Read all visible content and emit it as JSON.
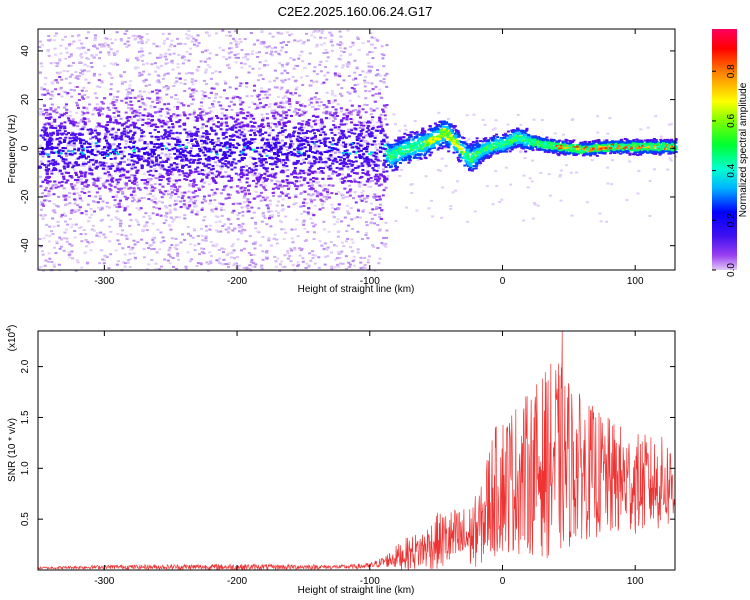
{
  "title": "C2E2.2025.160.06.24.G17",
  "chart_data": [
    {
      "type": "heatmap",
      "xlabel": "Height of straight line (km)",
      "ylabel": "Frequency (Hz)",
      "xlim": [
        -350,
        130
      ],
      "ylim": [
        -50,
        49
      ],
      "x_ticks": [
        -300,
        -200,
        -100,
        0,
        100
      ],
      "y_ticks": [
        -40,
        -20,
        0,
        20,
        40
      ],
      "colorbar": {
        "label": "Normalized spectral amplitude",
        "range": [
          0.0,
          0.97
        ],
        "ticks": [
          0.0,
          0.2,
          0.4,
          0.6,
          0.8
        ],
        "colormap": "rainbow"
      },
      "ridge_frequency": [
        [
          -350,
          0
        ],
        [
          -90,
          0
        ],
        [
          -85,
          -3
        ],
        [
          -75,
          0
        ],
        [
          -60,
          2
        ],
        [
          -50,
          5
        ],
        [
          -45,
          7
        ],
        [
          -40,
          5
        ],
        [
          -35,
          2
        ],
        [
          -30,
          -2
        ],
        [
          -25,
          -4
        ],
        [
          -20,
          -2
        ],
        [
          -15,
          0
        ],
        [
          -5,
          2
        ],
        [
          0,
          2
        ],
        [
          10,
          5
        ],
        [
          20,
          3
        ],
        [
          40,
          1
        ],
        [
          60,
          0
        ],
        [
          80,
          1
        ],
        [
          100,
          1
        ],
        [
          130,
          1
        ]
      ],
      "noise_scatter": {
        "x_range": [
          -350,
          -88
        ],
        "y_range": [
          -50,
          49
        ]
      },
      "grid": false
    },
    {
      "type": "line",
      "color": "#ee3333",
      "xlabel": "Height of straight line (km)",
      "ylabel": "SNR (10 * v/v)",
      "scale_label": "(x10",
      "scale_exp": "4",
      "xlim": [
        -350,
        130
      ],
      "ylim": [
        0,
        2.35
      ],
      "x_ticks": [
        -300,
        -200,
        -100,
        0,
        100
      ],
      "y_ticks": [
        0.5,
        1.0,
        1.5,
        2.0
      ],
      "envelope": [
        {
          "x": -350,
          "mean": 0.02,
          "amp": 0.01
        },
        {
          "x": -300,
          "mean": 0.03,
          "amp": 0.02
        },
        {
          "x": -200,
          "mean": 0.03,
          "amp": 0.03
        },
        {
          "x": -120,
          "mean": 0.03,
          "amp": 0.02
        },
        {
          "x": -100,
          "mean": 0.04,
          "amp": 0.03
        },
        {
          "x": -90,
          "mean": 0.08,
          "amp": 0.05
        },
        {
          "x": -75,
          "mean": 0.15,
          "amp": 0.15
        },
        {
          "x": -60,
          "mean": 0.2,
          "amp": 0.2
        },
        {
          "x": -50,
          "mean": 0.28,
          "amp": 0.28
        },
        {
          "x": -40,
          "mean": 0.3,
          "amp": 0.3
        },
        {
          "x": -25,
          "mean": 0.32,
          "amp": 0.32
        },
        {
          "x": -15,
          "mean": 0.45,
          "amp": 0.4
        },
        {
          "x": -10,
          "mean": 0.7,
          "amp": 0.6
        },
        {
          "x": 0,
          "mean": 0.85,
          "amp": 0.7
        },
        {
          "x": 20,
          "mean": 0.95,
          "amp": 0.8
        },
        {
          "x": 40,
          "mean": 1.1,
          "amp": 1.0
        },
        {
          "x": 60,
          "mean": 1.0,
          "amp": 0.7
        },
        {
          "x": 80,
          "mean": 0.9,
          "amp": 0.6
        },
        {
          "x": 100,
          "mean": 0.85,
          "amp": 0.5
        },
        {
          "x": 130,
          "mean": 0.85,
          "amp": 0.45
        }
      ],
      "peak": {
        "x": 45,
        "y": 2.35
      },
      "grid": false
    }
  ]
}
